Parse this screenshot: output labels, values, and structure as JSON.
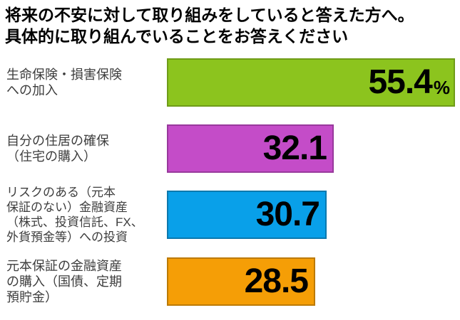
{
  "chart_data": {
    "type": "bar",
    "orientation": "horizontal",
    "title_lines": [
      "将来の不安に対して取り組みをしていると答えた方へ。",
      "具体的に取り組んでいることをお答えください"
    ],
    "value_unit": "%",
    "xlim": [
      0,
      56
    ],
    "grid": false,
    "legend": false,
    "categories": [
      "生命保険・損害保険への加入",
      "自分の住居の確保（住宅の購入）",
      "リスクのある（元本保証のない）金融資産（株式、投資信託、FX、外貨預金等）への投資",
      "元本保証の金融資産の購入（国債、定期預貯金）"
    ],
    "values": [
      55.4,
      32.1,
      30.7,
      28.5
    ],
    "bars": [
      {
        "label_lines": [
          "生命保険・損害保険",
          "への加入"
        ],
        "value": 55.4,
        "value_text": "55.4",
        "unit": "%",
        "color": "#8CC41E",
        "border_color": "#6F9C18"
      },
      {
        "label_lines": [
          "自分の住居の確保",
          "（住宅の購入）"
        ],
        "value": 32.1,
        "value_text": "32.1",
        "unit": "",
        "color": "#C44CC8",
        "border_color": "#98399C"
      },
      {
        "label_lines": [
          "リスクのある（元本",
          "保証のない）金融資産",
          "（株式、投資信託、FX、",
          "外貨預金等）への投資"
        ],
        "value": 30.7,
        "value_text": "30.7",
        "unit": "",
        "color": "#09A0E9",
        "border_color": "#0C79AE"
      },
      {
        "label_lines": [
          "元本保証の金融資産",
          "の購入（国債、定期",
          "預貯金）"
        ],
        "value": 28.5,
        "value_text": "28.5",
        "unit": "",
        "color": "#F59E06",
        "border_color": "#BC7A04"
      }
    ]
  }
}
